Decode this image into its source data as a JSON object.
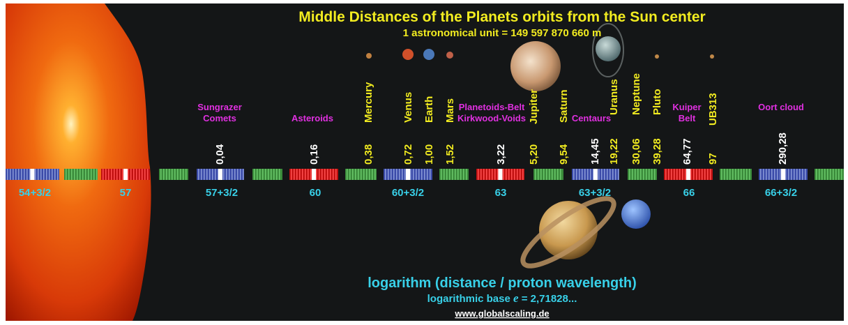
{
  "title": "Middle Distances of the Planets orbits from the Sun center",
  "subtitle": "1 astronomical unit = 149 597 870 660 m",
  "planets": [
    {
      "name": "Mercury",
      "distance": "0,38"
    },
    {
      "name": "Venus",
      "distance": "0,72"
    },
    {
      "name": "Earth",
      "distance": "1,00"
    },
    {
      "name": "Mars",
      "distance": "1,52"
    },
    {
      "name": "Jupiter",
      "distance": "5,20"
    },
    {
      "name": "Saturn",
      "distance": "9,54"
    },
    {
      "name": "Uranus",
      "distance": "19,22"
    },
    {
      "name": "Neptune",
      "distance": "30,06"
    },
    {
      "name": "Pluto",
      "distance": "39,28"
    },
    {
      "name": "UB313",
      "distance": "97"
    }
  ],
  "zones": [
    {
      "lines": [
        "Sungrazer",
        "Comets"
      ],
      "distance": "0,04"
    },
    {
      "lines": [
        "Asteroids"
      ],
      "distance": "0,16"
    },
    {
      "lines": [
        "Planetoids-Belt",
        "Kirkwood-Voids"
      ],
      "distance": "3,22"
    },
    {
      "lines": [
        "Centaurs"
      ],
      "distance": "14,45"
    },
    {
      "lines": [
        "Kuiper",
        "Belt"
      ],
      "distance": "64,77"
    },
    {
      "lines": [
        "Oort cloud"
      ],
      "distance": "290,28"
    }
  ],
  "scale": [
    "54+3/2",
    "57",
    "57+3/2",
    "60",
    "60+3/2",
    "63",
    "63+3/2",
    "66",
    "66+3/2"
  ],
  "footer": {
    "axis_label": "logarithm (distance / proton wavelength)",
    "base_label": "logarithmic base",
    "base_symbol": "e",
    "base_value": "= 2,71828...",
    "url": "www.globalscaling.de"
  }
}
